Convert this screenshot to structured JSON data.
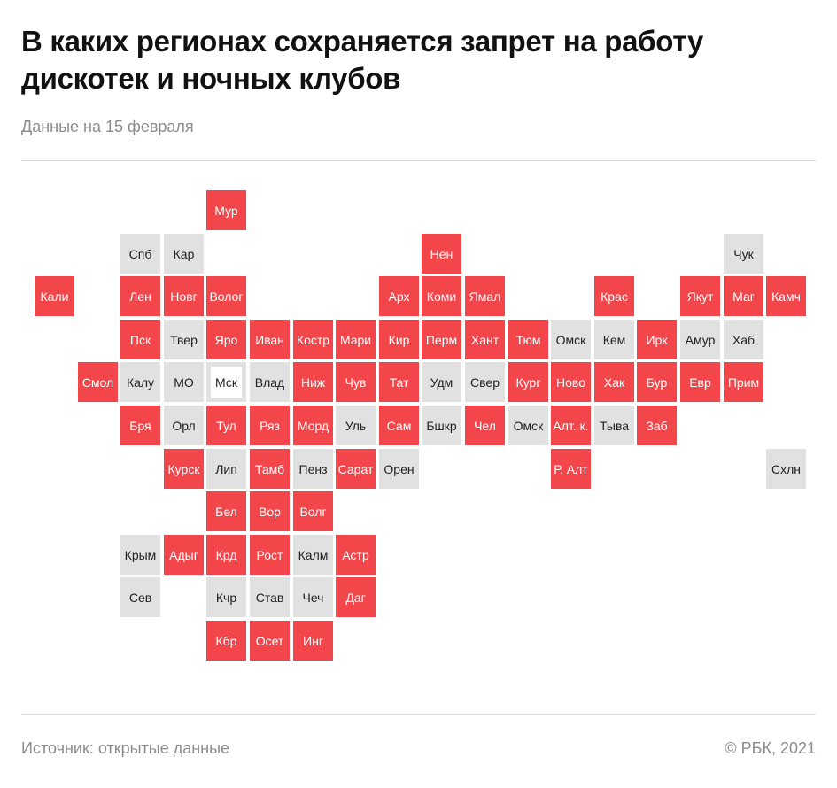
{
  "header": {
    "title": "В каких регионах сохраняется запрет на работу дискотек и ночных клубов",
    "subtitle": "Данные на 15 февраля"
  },
  "footer": {
    "source": "Источник:  открытые данные",
    "copyright": "©  РБК, 2021"
  },
  "colors": {
    "ban": "#f2464b",
    "no_ban": "#e1e1e1",
    "background": "#ffffff"
  },
  "map": {
    "regions": [
      {
        "label": "Мур",
        "col": 4,
        "row": 0,
        "status": "ban"
      },
      {
        "label": "Спб",
        "col": 2,
        "row": 1,
        "status": "no_ban"
      },
      {
        "label": "Кар",
        "col": 3,
        "row": 1,
        "status": "no_ban"
      },
      {
        "label": "Нен",
        "col": 9,
        "row": 1,
        "status": "ban"
      },
      {
        "label": "Чук",
        "col": 16,
        "row": 1,
        "status": "no_ban"
      },
      {
        "label": "Кали",
        "col": 0,
        "row": 2,
        "status": "ban"
      },
      {
        "label": "Лен",
        "col": 2,
        "row": 2,
        "status": "ban"
      },
      {
        "label": "Новг",
        "col": 3,
        "row": 2,
        "status": "ban"
      },
      {
        "label": "Волог",
        "col": 4,
        "row": 2,
        "status": "ban"
      },
      {
        "label": "Арх",
        "col": 8,
        "row": 2,
        "status": "ban"
      },
      {
        "label": "Коми",
        "col": 9,
        "row": 2,
        "status": "ban"
      },
      {
        "label": "Ямал",
        "col": 10,
        "row": 2,
        "status": "ban"
      },
      {
        "label": "Крас",
        "col": 13,
        "row": 2,
        "status": "ban"
      },
      {
        "label": "Якут",
        "col": 15,
        "row": 2,
        "status": "ban"
      },
      {
        "label": "Маг",
        "col": 16,
        "row": 2,
        "status": "ban"
      },
      {
        "label": "Камч",
        "col": 17,
        "row": 2,
        "status": "ban"
      },
      {
        "label": "Пск",
        "col": 2,
        "row": 3,
        "status": "ban"
      },
      {
        "label": "Твер",
        "col": 3,
        "row": 3,
        "status": "no_ban"
      },
      {
        "label": "Яро",
        "col": 4,
        "row": 3,
        "status": "ban"
      },
      {
        "label": "Иван",
        "col": 5,
        "row": 3,
        "status": "ban"
      },
      {
        "label": "Костр",
        "col": 6,
        "row": 3,
        "status": "ban"
      },
      {
        "label": "Мари",
        "col": 7,
        "row": 3,
        "status": "ban"
      },
      {
        "label": "Кир",
        "col": 8,
        "row": 3,
        "status": "ban"
      },
      {
        "label": "Перм",
        "col": 9,
        "row": 3,
        "status": "ban"
      },
      {
        "label": "Хант",
        "col": 10,
        "row": 3,
        "status": "ban"
      },
      {
        "label": "Тюм",
        "col": 11,
        "row": 3,
        "status": "ban"
      },
      {
        "label": "Омск",
        "col": 12,
        "row": 3,
        "status": "no_ban"
      },
      {
        "label": "Кем",
        "col": 13,
        "row": 3,
        "status": "no_ban"
      },
      {
        "label": "Ирк",
        "col": 14,
        "row": 3,
        "status": "ban"
      },
      {
        "label": "Амур",
        "col": 15,
        "row": 3,
        "status": "no_ban"
      },
      {
        "label": "Хаб",
        "col": 16,
        "row": 3,
        "status": "no_ban"
      },
      {
        "label": "Смол",
        "col": 1,
        "row": 4,
        "status": "ban"
      },
      {
        "label": "Калу",
        "col": 2,
        "row": 4,
        "status": "no_ban"
      },
      {
        "label": "МО",
        "col": 3,
        "row": 4,
        "status": "no_ban"
      },
      {
        "label": "Мск",
        "col": 4,
        "row": 4,
        "status": "no_ban",
        "outlined": true
      },
      {
        "label": "Влад",
        "col": 5,
        "row": 4,
        "status": "no_ban"
      },
      {
        "label": "Ниж",
        "col": 6,
        "row": 4,
        "status": "ban"
      },
      {
        "label": "Чув",
        "col": 7,
        "row": 4,
        "status": "ban"
      },
      {
        "label": "Тат",
        "col": 8,
        "row": 4,
        "status": "ban"
      },
      {
        "label": "Удм",
        "col": 9,
        "row": 4,
        "status": "no_ban"
      },
      {
        "label": "Свер",
        "col": 10,
        "row": 4,
        "status": "no_ban"
      },
      {
        "label": "Кург",
        "col": 11,
        "row": 4,
        "status": "ban"
      },
      {
        "label": "Ново",
        "col": 12,
        "row": 4,
        "status": "ban"
      },
      {
        "label": "Хак",
        "col": 13,
        "row": 4,
        "status": "ban"
      },
      {
        "label": "Бур",
        "col": 14,
        "row": 4,
        "status": "ban"
      },
      {
        "label": "Евр",
        "col": 15,
        "row": 4,
        "status": "ban"
      },
      {
        "label": "Прим",
        "col": 16,
        "row": 4,
        "status": "ban"
      },
      {
        "label": "Бря",
        "col": 2,
        "row": 5,
        "status": "ban"
      },
      {
        "label": "Орл",
        "col": 3,
        "row": 5,
        "status": "no_ban"
      },
      {
        "label": "Тул",
        "col": 4,
        "row": 5,
        "status": "ban"
      },
      {
        "label": "Ряз",
        "col": 5,
        "row": 5,
        "status": "ban"
      },
      {
        "label": "Морд",
        "col": 6,
        "row": 5,
        "status": "ban"
      },
      {
        "label": "Уль",
        "col": 7,
        "row": 5,
        "status": "no_ban"
      },
      {
        "label": "Сам",
        "col": 8,
        "row": 5,
        "status": "ban"
      },
      {
        "label": "Бшкр",
        "col": 9,
        "row": 5,
        "status": "no_ban"
      },
      {
        "label": "Чел",
        "col": 10,
        "row": 5,
        "status": "ban"
      },
      {
        "label": "Омск",
        "col": 11,
        "row": 5,
        "status": "no_ban"
      },
      {
        "label": "Алт. к.",
        "col": 12,
        "row": 5,
        "status": "ban"
      },
      {
        "label": "Тыва",
        "col": 13,
        "row": 5,
        "status": "no_ban"
      },
      {
        "label": "Заб",
        "col": 14,
        "row": 5,
        "status": "ban"
      },
      {
        "label": "Курск",
        "col": 3,
        "row": 6,
        "status": "ban"
      },
      {
        "label": "Лип",
        "col": 4,
        "row": 6,
        "status": "no_ban"
      },
      {
        "label": "Тамб",
        "col": 5,
        "row": 6,
        "status": "ban"
      },
      {
        "label": "Пенз",
        "col": 6,
        "row": 6,
        "status": "no_ban"
      },
      {
        "label": "Сарат",
        "col": 7,
        "row": 6,
        "status": "ban"
      },
      {
        "label": "Орен",
        "col": 8,
        "row": 6,
        "status": "no_ban"
      },
      {
        "label": "Р. Алт",
        "col": 12,
        "row": 6,
        "status": "ban"
      },
      {
        "label": "Схлн",
        "col": 17,
        "row": 6,
        "status": "no_ban"
      },
      {
        "label": "Бел",
        "col": 4,
        "row": 7,
        "status": "ban"
      },
      {
        "label": "Вор",
        "col": 5,
        "row": 7,
        "status": "ban"
      },
      {
        "label": "Волг",
        "col": 6,
        "row": 7,
        "status": "ban"
      },
      {
        "label": "Крым",
        "col": 2,
        "row": 8,
        "status": "no_ban"
      },
      {
        "label": "Адыг",
        "col": 3,
        "row": 8,
        "status": "ban"
      },
      {
        "label": "Крд",
        "col": 4,
        "row": 8,
        "status": "ban"
      },
      {
        "label": "Рост",
        "col": 5,
        "row": 8,
        "status": "ban"
      },
      {
        "label": "Калм",
        "col": 6,
        "row": 8,
        "status": "no_ban"
      },
      {
        "label": "Астр",
        "col": 7,
        "row": 8,
        "status": "ban"
      },
      {
        "label": "Сев",
        "col": 2,
        "row": 9,
        "status": "no_ban"
      },
      {
        "label": "Кчр",
        "col": 4,
        "row": 9,
        "status": "no_ban"
      },
      {
        "label": "Став",
        "col": 5,
        "row": 9,
        "status": "no_ban"
      },
      {
        "label": "Чеч",
        "col": 6,
        "row": 9,
        "status": "no_ban"
      },
      {
        "label": "Даг",
        "col": 7,
        "row": 9,
        "status": "ban"
      },
      {
        "label": "Кбр",
        "col": 4,
        "row": 10,
        "status": "ban"
      },
      {
        "label": "Осет",
        "col": 5,
        "row": 10,
        "status": "ban"
      },
      {
        "label": "Инг",
        "col": 6,
        "row": 10,
        "status": "ban"
      }
    ]
  }
}
